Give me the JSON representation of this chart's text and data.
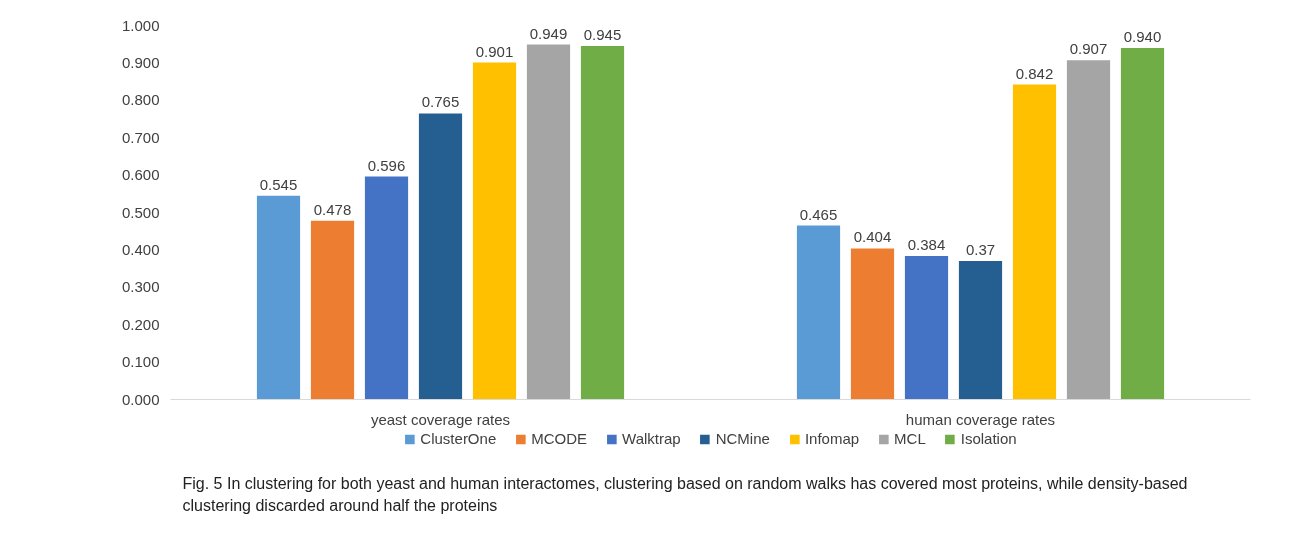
{
  "chart_data": {
    "type": "bar",
    "categories": [
      "yeast coverage rates",
      "human coverage rates"
    ],
    "series": [
      {
        "name": "ClusterOne",
        "color": "#5b9bd5",
        "values": [
          0.545,
          0.465
        ],
        "value_labels": [
          "0.545",
          "0.465"
        ]
      },
      {
        "name": "MCODE",
        "color": "#ed7d31",
        "values": [
          0.478,
          0.404
        ],
        "value_labels": [
          "0.478",
          "0.404"
        ]
      },
      {
        "name": "Walktrap",
        "color": "#4472c4",
        "values": [
          0.596,
          0.384
        ],
        "value_labels": [
          "0.596",
          "0.384"
        ]
      },
      {
        "name": "NCMine",
        "color": "#255e91",
        "values": [
          0.765,
          0.37
        ],
        "value_labels": [
          "0.765",
          "0.37"
        ]
      },
      {
        "name": "Infomap",
        "color": "#ffc000",
        "values": [
          0.901,
          0.842
        ],
        "value_labels": [
          "0.901",
          "0.842"
        ]
      },
      {
        "name": "MCL",
        "color": "#a5a5a5",
        "values": [
          0.949,
          0.907
        ],
        "value_labels": [
          "0.949",
          "0.907"
        ]
      },
      {
        "name": "Isolation",
        "color": "#70ad47",
        "values": [
          0.945,
          0.94
        ],
        "value_labels": [
          "0.945",
          "0.940"
        ]
      }
    ],
    "ylim": [
      0,
      1
    ],
    "yticks": [
      {
        "value": 0,
        "label": "0.000"
      },
      {
        "value": 0.1,
        "label": "0.100"
      },
      {
        "value": 0.2,
        "label": "0.200"
      },
      {
        "value": 0.3,
        "label": "0.300"
      },
      {
        "value": 0.4,
        "label": "0.400"
      },
      {
        "value": 0.5,
        "label": "0.500"
      },
      {
        "value": 0.6,
        "label": "0.600"
      },
      {
        "value": 0.7,
        "label": "0.700"
      },
      {
        "value": 0.8,
        "label": "0.800"
      },
      {
        "value": 0.9,
        "label": "0.900"
      },
      {
        "value": 1,
        "label": "1.000"
      }
    ],
    "legend": "bottom",
    "annotations": [
      "Fig. 5 In clustering for both yeast and human interactomes, clustering based on random walks has covered most proteins, while density-based clustering discarded around half the proteins"
    ]
  }
}
